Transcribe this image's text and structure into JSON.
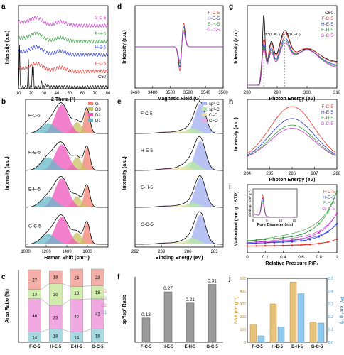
{
  "figure": {
    "series_names": [
      "F-C-5",
      "H-E-5",
      "E-H-5",
      "G-C-5"
    ],
    "series_colors": [
      "#e8312a",
      "#2a3cd6",
      "#2f9a3a",
      "#c935c9"
    ],
    "gray_color": "#7f7f7f"
  },
  "chart_data": [
    {
      "panel": "a",
      "type": "line",
      "xlabel": "2 Theta (°)",
      "ylabel": "Intensity (a.u.)",
      "xlim": [
        10,
        80
      ],
      "xticks": [
        10,
        20,
        30,
        40,
        50,
        60,
        70,
        80
      ],
      "labels": [
        "G-C-5",
        "E-H-5",
        "H-E-5",
        "F-C-5",
        "C60"
      ],
      "peaks": [
        {
          "name": "G-C-5",
          "offset": 0.8,
          "pk": [
            [
              24,
              0.09,
              5
            ],
            [
              43,
              0.05,
              4
            ]
          ]
        },
        {
          "name": "E-H-5",
          "offset": 0.6,
          "pk": [
            [
              24,
              0.09,
              5
            ],
            [
              43,
              0.05,
              4
            ]
          ]
        },
        {
          "name": "H-E-5",
          "offset": 0.43,
          "pk": [
            [
              24,
              0.09,
              5
            ],
            [
              43,
              0.05,
              4
            ]
          ]
        },
        {
          "name": "F-C-5",
          "offset": 0.22,
          "pk": [
            [
              24,
              0.09,
              5
            ],
            [
              43,
              0.05,
              4
            ]
          ]
        },
        {
          "name": "C60",
          "offset": 0.02,
          "pk": [
            [
              10.8,
              0.55,
              0.25
            ],
            [
              17.7,
              0.35,
              0.25
            ],
            [
              20.8,
              0.28,
              0.25
            ],
            [
              21.7,
              0.25,
              0.25
            ],
            [
              28.1,
              0.08,
              0.3
            ],
            [
              30.9,
              0.06,
              0.3
            ],
            [
              32.8,
              0.05,
              0.3
            ]
          ]
        }
      ]
    },
    {
      "panel": "b",
      "type": "area",
      "xlabel": "Raman Shift (cm⁻¹)",
      "ylabel": "Intensity (a.u.)",
      "xlim": [
        1000,
        1800
      ],
      "xticks": [
        1000,
        1200,
        1400,
        1600
      ],
      "legend": [
        "G",
        "D3",
        "D2",
        "D1"
      ],
      "legend_colors": [
        "#f08070",
        "#c8c060",
        "#ee55bb",
        "#66b8c8"
      ],
      "samples": [
        {
          "name": "F-C-5",
          "comps": [
            [
              1595,
              0.85,
              28
            ],
            [
              1500,
              0.4,
              45
            ],
            [
              1350,
              1.0,
              65
            ],
            [
              1220,
              0.35,
              70
            ]
          ]
        },
        {
          "name": "H-E-5",
          "comps": [
            [
              1595,
              0.8,
              28
            ],
            [
              1500,
              0.45,
              45
            ],
            [
              1350,
              0.9,
              65
            ],
            [
              1220,
              0.45,
              70
            ]
          ]
        },
        {
          "name": "E-H-5",
          "comps": [
            [
              1595,
              0.75,
              28
            ],
            [
              1500,
              0.38,
              45
            ],
            [
              1350,
              1.0,
              65
            ],
            [
              1220,
              0.38,
              70
            ]
          ]
        },
        {
          "name": "G-C-5",
          "comps": [
            [
              1595,
              0.75,
              28
            ],
            [
              1500,
              0.4,
              45
            ],
            [
              1350,
              0.95,
              65
            ],
            [
              1220,
              0.35,
              70
            ]
          ]
        }
      ]
    },
    {
      "panel": "c",
      "type": "bar",
      "ylabel": "Area Ratio (%)",
      "categories": [
        "F-C-5",
        "H-E-5",
        "E-H-5",
        "G-C-5"
      ],
      "legend": [
        "G",
        "D3",
        "D2",
        "D1"
      ],
      "series": [
        {
          "name": "D1",
          "values": [
            14,
            18,
            14,
            18
          ]
        },
        {
          "name": "D2",
          "values": [
            46,
            33,
            45,
            42
          ]
        },
        {
          "name": "D3",
          "values": [
            13,
            30,
            18,
            18
          ]
        },
        {
          "name": "G",
          "values": [
            27,
            18,
            24,
            23
          ]
        }
      ],
      "segment_colors": {
        "D1": "#a8d8e0",
        "D2": "#f0a8e0",
        "D3": "#d2ecb0",
        "G": "#f4b0a8"
      }
    },
    {
      "panel": "d",
      "type": "line",
      "xlabel": "Magnetic Field (G)",
      "ylabel": "Intensity (a.u.)",
      "xlim": [
        3460,
        3560
      ],
      "xticks": [
        3460,
        3480,
        3500,
        3520,
        3540,
        3560
      ],
      "center": 3513,
      "amplitudes": [
        1.0,
        0.85,
        0.7,
        0.6
      ],
      "legend": [
        "F-C-5",
        "H-E-5",
        "E-H-5",
        "G-C-5"
      ]
    },
    {
      "panel": "e",
      "type": "area",
      "xlabel": "Binding Energy (eV)",
      "ylabel": "Intensity (a.u.)",
      "xlim": [
        292,
        282
      ],
      "xticks": [
        292,
        289,
        286,
        283
      ],
      "legend": [
        "sp²-C",
        "sp³-C",
        "C–O",
        "C=O"
      ],
      "legend_colors": [
        "#a6b4f0",
        "#b8e8a8",
        "#e8e0a0",
        "#f0a8e0"
      ],
      "samples": [
        {
          "name": "F-C-5",
          "comps": [
            [
              284.6,
              1.0,
              0.6
            ],
            [
              285.5,
              0.18,
              0.7
            ],
            [
              286.6,
              0.08,
              0.8
            ],
            [
              288.6,
              0.04,
              0.9
            ]
          ]
        },
        {
          "name": "H-E-5",
          "comps": [
            [
              284.6,
              1.0,
              0.6
            ],
            [
              285.5,
              0.3,
              0.7
            ],
            [
              286.6,
              0.12,
              0.8
            ],
            [
              288.6,
              0.05,
              0.9
            ]
          ]
        },
        {
          "name": "E-H-5",
          "comps": [
            [
              284.6,
              1.0,
              0.6
            ],
            [
              285.5,
              0.15,
              0.7
            ],
            [
              286.6,
              0.07,
              0.8
            ],
            [
              288.6,
              0.04,
              0.9
            ]
          ]
        },
        {
          "name": "G-C-5",
          "comps": [
            [
              284.6,
              1.0,
              0.6
            ],
            [
              285.5,
              0.22,
              0.7
            ],
            [
              286.6,
              0.08,
              0.8
            ],
            [
              288.6,
              0.04,
              0.9
            ]
          ]
        }
      ]
    },
    {
      "panel": "f",
      "type": "bar",
      "ylabel": "sp³/sp² Ratio",
      "categories": [
        "F-C-5",
        "H-E-5",
        "E-H-5",
        "G-C-5"
      ],
      "values": [
        0.13,
        0.27,
        0.21,
        0.31
      ],
      "value_labels": [
        "0.13",
        "0.27",
        "0.21",
        "0.31"
      ],
      "ylim": [
        0,
        0.35
      ]
    },
    {
      "panel": "g",
      "type": "line",
      "xlabel": "Photon Energy (eV)",
      "ylabel": "Intensity (a.u.)",
      "xlim": [
        280,
        310
      ],
      "xticks": [
        280,
        290,
        300,
        310
      ],
      "annotations": [
        "π*(C=C)",
        "σ*(C–C)"
      ],
      "legend": [
        "C60",
        "F-C-5",
        "H-E-5",
        "E-H-5",
        "G-C-5"
      ]
    },
    {
      "panel": "h",
      "type": "line",
      "xlabel": "Photon Energy (eV)",
      "ylabel": "Intensity (a.u.)",
      "xlim": [
        284,
        288
      ],
      "xticks": [
        284,
        285,
        286,
        287,
        288
      ],
      "peak_center": 286,
      "amplitudes": [
        1.0,
        0.78,
        0.66,
        0.6
      ],
      "legend": [
        "F-C-5",
        "H-E-5",
        "E-H-5",
        "G-C-5"
      ]
    },
    {
      "panel": "i",
      "type": "line",
      "xlabel": "Relative Pressure P/P₀",
      "ylabel": "Vadsorbed (cm³ g⁻¹ STP)",
      "xlim": [
        0,
        1.0
      ],
      "xticks": [
        0.0,
        0.2,
        0.4,
        0.6,
        0.8,
        1.0
      ],
      "v_at_1": [
        80,
        170,
        360,
        230
      ],
      "v_at_0": [
        40,
        55,
        70,
        60
      ],
      "legend": [
        "F-C-5",
        "H-E-5",
        "E-H-5",
        "G-C-5"
      ],
      "inset": {
        "xlabel": "Pore Diameter (nm)",
        "ylabel": "dV/dlogD (cm³ g⁻¹)",
        "xlim": [
          0,
          16
        ],
        "xticks": [
          0,
          5,
          10,
          15
        ]
      }
    },
    {
      "panel": "j",
      "type": "bar",
      "ylabel": "SSA (m² g⁻¹)",
      "ylabel2": "PV (cm³ g⁻¹)",
      "categories": [
        "F-C-5",
        "H-E-5",
        "E-H-5",
        "G-C-5"
      ],
      "ssa": [
        140,
        300,
        470,
        160
      ],
      "pv": [
        0.05,
        0.12,
        0.38,
        0.15
      ],
      "ylim": [
        0,
        500
      ],
      "y2lim": [
        0,
        0.5
      ],
      "yticks": [
        0,
        100,
        200,
        300,
        400,
        500
      ],
      "y2ticks": [
        0.0,
        0.1,
        0.2,
        0.3,
        0.4,
        0.5
      ],
      "colors": {
        "ssa": "#e7c37a",
        "pv": "#8fcbf0"
      }
    }
  ]
}
